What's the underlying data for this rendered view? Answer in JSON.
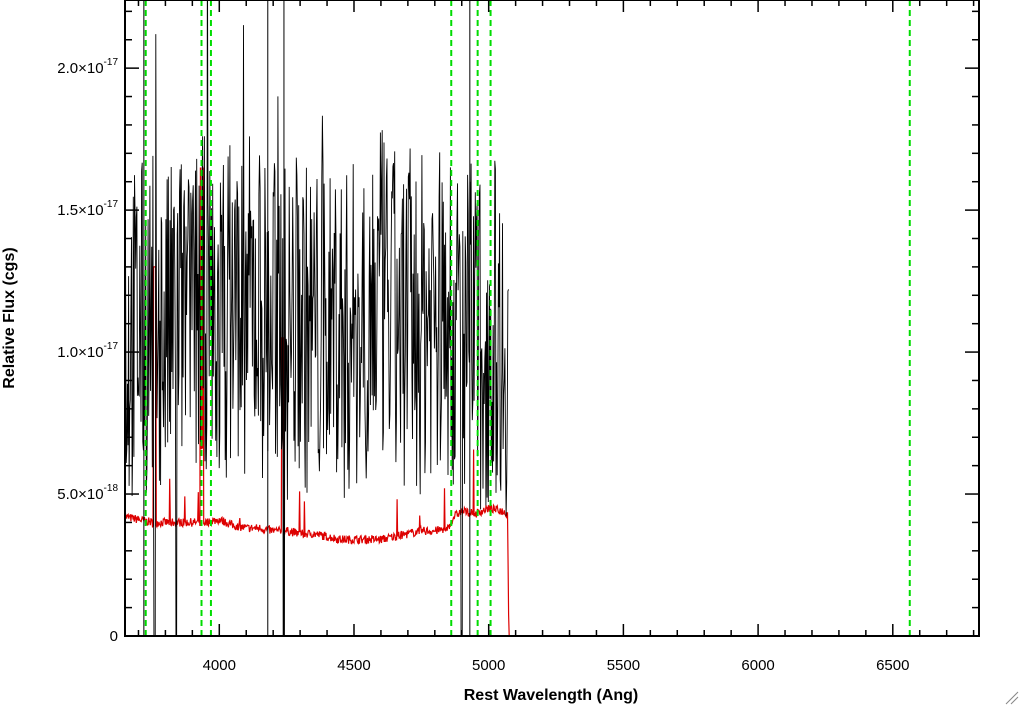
{
  "chart_data": {
    "type": "line",
    "title": "",
    "xlabel": "Rest Wavelength (Ang)",
    "ylabel": "Relative Flux (cgs)",
    "xlim": [
      3650,
      6820
    ],
    "ylim": [
      0,
      2.24e-17
    ],
    "x_ticks": [
      4000,
      4500,
      5000,
      5500,
      6000,
      6500
    ],
    "x_tick_labels": [
      "4000",
      "4500",
      "5000",
      "5500",
      "6000",
      "6500"
    ],
    "y_ticks": [
      {
        "value": 0,
        "label": "0",
        "exp": ""
      },
      {
        "value": 5e-18,
        "label": "5.0×10",
        "exp": "-18"
      },
      {
        "value": 1e-17,
        "label": "1.0×10",
        "exp": "-17"
      },
      {
        "value": 1.5e-17,
        "label": "1.5×10",
        "exp": "-17"
      },
      {
        "value": 2e-17,
        "label": "2.0×10",
        "exp": "-17"
      }
    ],
    "grid": false,
    "colors": {
      "flux": "#000000",
      "error": "#dd0000",
      "lines": "#00dd00"
    },
    "marker_lines_x": [
      3727,
      3934,
      3969,
      4861,
      4959,
      5007,
      6563
    ],
    "flux_range": [
      3650,
      5075
    ],
    "error_range": [
      3650,
      6820
    ],
    "flux_series": {
      "name": "",
      "x": [
        3650,
        3675,
        3700,
        3725,
        3750,
        3775,
        3800,
        3825,
        3850,
        3875,
        3900,
        3925,
        3950,
        3975,
        4000,
        4025,
        4050,
        4075,
        4100,
        4125,
        4150,
        4175,
        4200,
        4225,
        4250,
        4275,
        4300,
        4325,
        4350,
        4375,
        4400,
        4425,
        4450,
        4475,
        4500,
        4525,
        4550,
        4575,
        4600,
        4625,
        4650,
        4675,
        4700,
        4725,
        4750,
        4775,
        4800,
        4825,
        4850,
        4875,
        4900,
        4925,
        4950,
        4975,
        5000,
        5025,
        5050,
        5070
      ],
      "values": [
        1e-17,
        1.05e-17,
        1.1e-17,
        1.08e-17,
        1.12e-17,
        1.1e-17,
        1.05e-17,
        1.08e-17,
        1.15e-17,
        1.12e-17,
        1.1e-17,
        1.15e-17,
        1.18e-17,
        1.12e-17,
        1.1e-17,
        1.15e-17,
        1.2e-17,
        1.18e-17,
        1.15e-17,
        1.2e-17,
        1.18e-17,
        1.1e-17,
        1.12e-17,
        1.15e-17,
        1.05e-17,
        1.1e-17,
        1.15e-17,
        1.08e-17,
        1.1e-17,
        1.05e-17,
        1.1e-17,
        1.15e-17,
        1.08e-17,
        1.05e-17,
        1.1e-17,
        1.12e-17,
        1.15e-17,
        1.18e-17,
        1.2e-17,
        1.15e-17,
        1.12e-17,
        1.1e-17,
        1.15e-17,
        1.08e-17,
        1.1e-17,
        1.15e-17,
        1.18e-17,
        1.12e-17,
        1.1e-17,
        1.08e-17,
        1.05e-17,
        1.1e-17,
        1.08e-17,
        1e-17,
        1.05e-17,
        1.1e-17,
        1.05e-17,
        1e-17
      ]
    },
    "error_series": {
      "name": "",
      "x": [
        3650,
        3700,
        3750,
        3800,
        3850,
        3900,
        3950,
        4000,
        4050,
        4100,
        4150,
        4200,
        4250,
        4300,
        4350,
        4400,
        4450,
        4500,
        4550,
        4600,
        4650,
        4700,
        4750,
        4800,
        4850,
        4870,
        4900,
        4950,
        5000,
        5050,
        5070,
        5075,
        5100,
        5500,
        6000,
        6500,
        6820
      ],
      "values": [
        4.2e-18,
        4.1e-18,
        4e-18,
        4e-18,
        4e-18,
        4e-18,
        4e-18,
        4.1e-18,
        3.9e-18,
        3.8e-18,
        3.8e-18,
        3.7e-18,
        3.7e-18,
        3.6e-18,
        3.6e-18,
        3.5e-18,
        3.4e-18,
        3.4e-18,
        3.4e-18,
        3.4e-18,
        3.5e-18,
        3.6e-18,
        3.7e-18,
        3.7e-18,
        3.8e-18,
        4.2e-18,
        4.4e-18,
        4.3e-18,
        4.5e-18,
        4.4e-18,
        4.3e-18,
        0,
        0,
        0,
        0,
        0,
        0
      ]
    }
  }
}
